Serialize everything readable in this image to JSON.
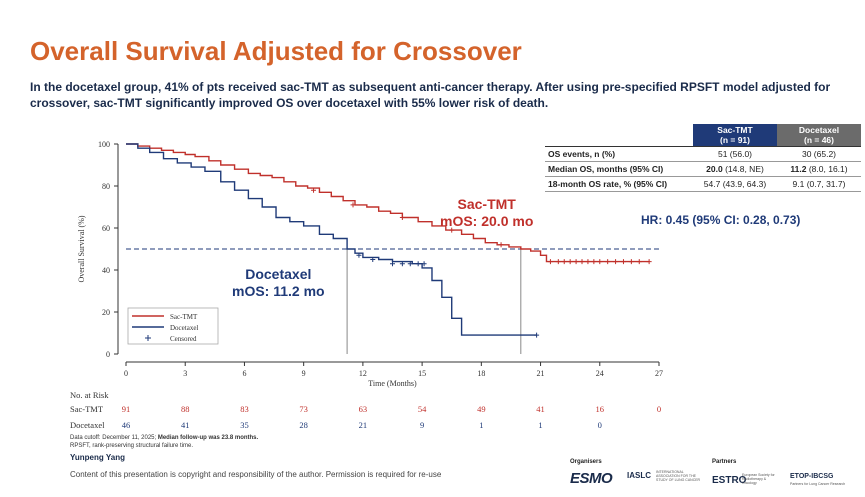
{
  "slide": {
    "title": "Overall Survival Adjusted for Crossover",
    "subtitle": "In the docetaxel group, 41% of pts received sac-TMT as subsequent anti-cancer therapy. After using pre-specified RPSFT model adjusted for crossover, sac-TMT significantly improved OS over docetaxel with 55% lower risk of death."
  },
  "table": {
    "headers": [
      {
        "line1": "Sac-TMT",
        "line2": "(n = 91)"
      },
      {
        "line1": "Docetaxel",
        "line2": "(n = 46)"
      }
    ],
    "rows": [
      {
        "label": "OS events, n (%)",
        "sac": "51 (56.0)",
        "doc": "30 (65.2)",
        "sac_bold": "",
        "sac_rest": "",
        "doc_bold": "",
        "doc_rest": ""
      },
      {
        "label": "Median OS, months (95% CI)",
        "sac": "",
        "doc": "",
        "sac_bold": "20.0",
        "sac_rest": " (14.8, NE)",
        "doc_bold": "11.2",
        "doc_rest": " (8.0, 16.1)"
      },
      {
        "label": "18-month OS rate, % (95% CI)",
        "sac": "54.7 (43.9, 64.3)",
        "doc": "9.1 (0.7, 31.7)",
        "sac_bold": "",
        "sac_rest": "",
        "doc_bold": "",
        "doc_rest": ""
      }
    ],
    "hr": "HR: 0.45 (95% CI: 0.28, 0.73)"
  },
  "annotations": {
    "sac_line1": "Sac-TMT",
    "sac_line2": "mOS: 20.0 mo",
    "doc_line1": "Docetaxel",
    "doc_line2": "mOS: 11.2 mo"
  },
  "colors": {
    "sac": "#c0302b",
    "doc": "#1f3a78"
  },
  "chart_data": {
    "type": "line",
    "title": "",
    "xlabel": "Time (Months)",
    "ylabel": "Overall Survival (%)",
    "xlim": [
      0,
      27
    ],
    "ylim": [
      0,
      100
    ],
    "xticks": [
      0,
      3,
      6,
      9,
      12,
      15,
      18,
      21,
      24,
      27
    ],
    "yticks": [
      0,
      20,
      40,
      60,
      80,
      100
    ],
    "reference_line": {
      "y": 50,
      "style": "dashed"
    },
    "median_lines": [
      11.2,
      20.0
    ],
    "legend": [
      {
        "name": "Sac-TMT",
        "symbol": "line"
      },
      {
        "name": "Docetaxel",
        "symbol": "line"
      },
      {
        "name": "Censored",
        "symbol": "+"
      }
    ],
    "series": [
      {
        "name": "Sac-TMT",
        "color": "#c0302b",
        "x": [
          0,
          0.6,
          1.2,
          1.8,
          2.4,
          3.0,
          3.5,
          4.2,
          4.8,
          5.5,
          6.2,
          6.8,
          7.4,
          8.0,
          8.6,
          9.2,
          9.8,
          10.4,
          11.0,
          11.6,
          12.2,
          12.8,
          13.4,
          14.0,
          14.8,
          15.5,
          16.2,
          17.0,
          17.6,
          18.2,
          18.8,
          19.4,
          20.0,
          20.5,
          21.0,
          21.3,
          21.8,
          22.5,
          23.5,
          24.5,
          25.5,
          26.5
        ],
        "y": [
          100,
          99,
          98,
          97,
          96,
          95,
          94,
          92,
          90,
          88,
          86,
          85,
          84,
          82,
          80,
          79,
          77,
          75,
          73,
          71,
          70,
          68,
          67,
          65,
          63,
          61,
          59,
          57,
          55,
          53,
          52,
          51,
          50,
          49,
          47,
          44,
          44,
          44,
          44,
          44,
          44,
          44
        ],
        "censored_x": [
          9.5,
          11.5,
          14.0,
          16.5,
          19.0,
          21.5,
          21.9,
          22.2,
          22.5,
          22.8,
          23.1,
          23.4,
          23.7,
          24.0,
          24.4,
          24.8,
          25.2,
          25.6,
          26.0,
          26.5
        ],
        "censored_y": [
          78,
          71,
          65,
          59,
          52,
          44,
          44,
          44,
          44,
          44,
          44,
          44,
          44,
          44,
          44,
          44,
          44,
          44,
          44,
          44
        ]
      },
      {
        "name": "Docetaxel",
        "color": "#1f3a78",
        "x": [
          0,
          0.6,
          1.2,
          1.9,
          2.6,
          3.3,
          4.0,
          4.8,
          5.5,
          6.2,
          6.9,
          7.6,
          8.3,
          9.0,
          9.8,
          10.5,
          11.2,
          11.6,
          12.0,
          12.8,
          13.5,
          14.5,
          15.0,
          15.5,
          16.0,
          16.5,
          17.0,
          18.0,
          19.0,
          20.0,
          20.8
        ],
        "y": [
          100,
          98,
          96,
          93,
          91,
          89,
          87,
          82,
          78,
          74,
          70,
          65,
          63,
          61,
          57,
          55,
          50,
          48,
          46,
          45,
          44,
          43,
          41,
          35,
          27,
          17,
          9,
          9,
          9,
          9,
          9
        ],
        "censored_x": [
          11.8,
          12.5,
          13.5,
          14.0,
          14.4,
          14.8,
          15.1,
          20.8
        ],
        "censored_y": [
          47,
          45,
          43,
          43,
          43,
          43,
          43,
          9
        ]
      }
    ],
    "risk_table": {
      "title": "No. at Risk",
      "times": [
        0,
        3,
        6,
        9,
        12,
        15,
        18,
        21,
        24,
        27
      ],
      "rows": [
        {
          "name": "Sac-TMT",
          "values": [
            "91",
            "88",
            "83",
            "73",
            "63",
            "54",
            "49",
            "41",
            "16",
            "0"
          ]
        },
        {
          "name": "Docetaxel",
          "values": [
            "46",
            "41",
            "35",
            "28",
            "21",
            "9",
            "1",
            "1",
            "0",
            ""
          ]
        }
      ]
    }
  },
  "footnote": {
    "line1_a": "Data cutoff: December 11, 2025; ",
    "line1_b": "Median follow-up was 23.8 months.",
    "line2": "RPSFT, rank-preserving structural failure time."
  },
  "author": "Yunpeng Yang",
  "copyright": "Content of this presentation is copyright and responsibility of the author. Permission is required for re-use",
  "footer": {
    "organisers": "Organisers",
    "partners": "Partners",
    "esmo": "ESMO",
    "iaslc": "IASLC",
    "iaslc_sub": "INTERNATIONAL ASSOCIATION FOR THE STUDY OF LUNG CANCER",
    "estro": "ESTRO",
    "estro_sub": "European Society for Radiotherapy & Oncology",
    "etop": "ETOP-IBCSG",
    "etop_sub": "Partners for Lung Cancer Research"
  }
}
